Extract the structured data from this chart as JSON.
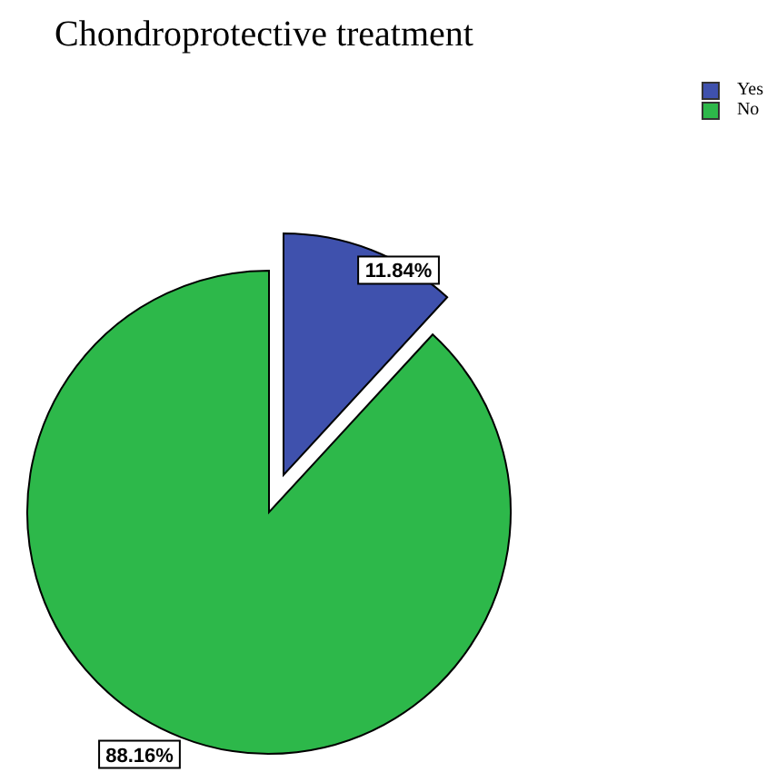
{
  "chart_data": {
    "type": "pie",
    "title": "Chondroprotective treatment",
    "categories": [
      "Yes",
      "No"
    ],
    "values": [
      11.84,
      88.16
    ],
    "colors": [
      "#3f51ad",
      "#2db84a"
    ],
    "value_labels": [
      "11.84%",
      "88.16%"
    ],
    "legend": "top right"
  }
}
